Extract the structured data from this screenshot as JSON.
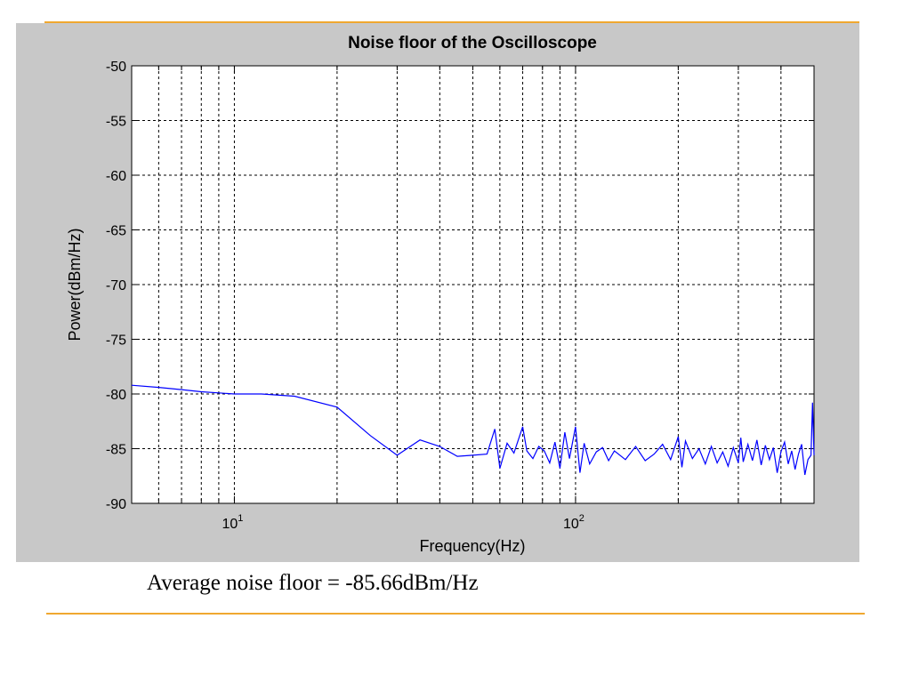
{
  "caption": "Average noise floor = -85.66dBm/Hz",
  "colors": {
    "accent_rule": "#f0a830",
    "figure_background": "#c8c8c8",
    "plot_background": "#ffffff",
    "series": "#0000ff",
    "grid": "#000000"
  },
  "chart_data": {
    "type": "line",
    "title": "Noise floor of the Oscilloscope",
    "xlabel": "Frequency(Hz)",
    "ylabel": "Power(dBm/Hz)",
    "xscale": "log",
    "xlim": [
      5,
      500
    ],
    "ylim": [
      -90,
      -50
    ],
    "grid": true,
    "grid_style": "dashed",
    "yticks": [
      "-50",
      "-55",
      "-60",
      "-65",
      "-70",
      "-75",
      "-80",
      "-85",
      "-90"
    ],
    "xticks": [
      {
        "base": "10",
        "exp": "1",
        "value": 10
      },
      {
        "base": "10",
        "exp": "2",
        "value": 100
      }
    ],
    "series": [
      {
        "x": [
          5,
          6,
          7,
          8,
          9,
          10,
          12,
          15,
          20,
          25,
          30,
          35,
          40,
          45,
          50,
          55,
          58,
          60,
          63,
          66,
          70,
          72,
          75,
          78,
          81,
          84,
          87,
          90,
          93,
          96,
          100,
          103,
          106,
          110,
          115,
          120,
          125,
          130,
          140,
          150,
          160,
          170,
          180,
          190,
          200,
          205,
          210,
          220,
          230,
          240,
          250,
          260,
          270,
          280,
          290,
          300,
          305,
          310,
          320,
          330,
          340,
          350,
          360,
          370,
          380,
          390,
          400,
          410,
          420,
          430,
          440,
          450,
          460,
          470,
          480,
          490,
          495,
          500
        ],
        "y": [
          -79.2,
          -79.4,
          -79.6,
          -79.8,
          -79.9,
          -80.0,
          -80.0,
          -80.2,
          -81.2,
          -83.8,
          -85.6,
          -84.2,
          -84.8,
          -85.7,
          -85.6,
          -85.5,
          -83.2,
          -86.8,
          -84.5,
          -85.4,
          -83.0,
          -85.2,
          -85.9,
          -84.8,
          -85.2,
          -86.3,
          -84.4,
          -86.8,
          -83.5,
          -85.9,
          -83.0,
          -87.2,
          -84.5,
          -86.4,
          -85.3,
          -84.9,
          -86.1,
          -85.2,
          -86.0,
          -84.8,
          -86.1,
          -85.5,
          -84.6,
          -86.0,
          -83.9,
          -86.7,
          -84.3,
          -85.9,
          -85.0,
          -86.4,
          -84.8,
          -86.3,
          -85.3,
          -86.6,
          -84.9,
          -86.3,
          -84.0,
          -86.2,
          -84.6,
          -86.1,
          -84.2,
          -86.5,
          -84.7,
          -86.0,
          -84.9,
          -87.2,
          -85.3,
          -84.4,
          -86.4,
          -85.2,
          -86.9,
          -85.5,
          -84.6,
          -87.4,
          -86.0,
          -85.6,
          -80.8,
          -85.6
        ]
      }
    ]
  }
}
